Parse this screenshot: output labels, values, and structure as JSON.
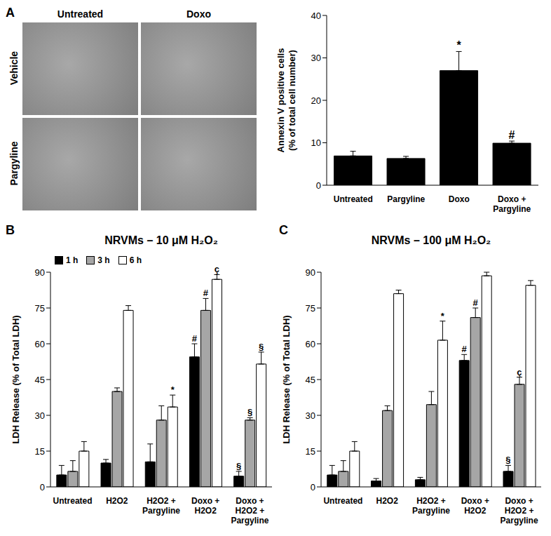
{
  "chart_data": [
    {
      "panel_label": "A",
      "type": "bar",
      "image_grid": {
        "columns": [
          "Untreated",
          "Doxo"
        ],
        "rows": [
          "Vehicle",
          "Pargyline"
        ]
      },
      "y_label": "Annexin V positive cells (% of total cell number)",
      "categories": [
        "Untreated",
        "Pargyline",
        "Doxo",
        "Doxo + Pargyline"
      ],
      "series": [
        {
          "color": "#000000",
          "values": [
            6.9,
            6.3,
            27,
            9.9
          ],
          "errors": [
            1.1,
            0.5,
            4.5,
            0.5
          ],
          "annotations": [
            null,
            null,
            "*",
            "#"
          ]
        }
      ],
      "ylim": [
        0,
        40
      ],
      "yticks": [
        0,
        10,
        20,
        30,
        40
      ]
    },
    {
      "panel_label": "B",
      "type": "bar",
      "title": "NRVMs – 10 μM H₂O₂",
      "y_label": "LDH Release (% of Total LDH)",
      "categories": [
        "Untreated",
        "H2O2",
        "H2O2 + Pargyline",
        "Doxo + H2O2",
        "Doxo + H2O2 + Pargyline"
      ],
      "series": [
        {
          "name": "1 h",
          "color": "#000000",
          "values": [
            5,
            10,
            10.5,
            54.5,
            4.5
          ],
          "errors": [
            4,
            1.5,
            7.5,
            5.5,
            2
          ],
          "annotations": [
            null,
            null,
            null,
            "#",
            "§"
          ]
        },
        {
          "name": "3 h",
          "color": "#a6a6a6",
          "values": [
            6.5,
            40,
            28,
            74,
            28
          ],
          "errors": [
            4.5,
            1.5,
            6,
            5,
            1
          ],
          "annotations": [
            null,
            null,
            null,
            "#",
            "§"
          ]
        },
        {
          "name": "6 h",
          "color": "#ffffff",
          "values": [
            15,
            74,
            33.5,
            87,
            51.5
          ],
          "errors": [
            4,
            2,
            5,
            2,
            5
          ],
          "annotations": [
            null,
            null,
            "*",
            "ç",
            "§"
          ]
        }
      ],
      "ylim": [
        0,
        90
      ],
      "yticks": [
        0,
        15,
        30,
        45,
        60,
        75,
        90
      ],
      "legend": "top left"
    },
    {
      "panel_label": "C",
      "type": "bar",
      "title": "NRVMs – 100 μM H₂O₂",
      "y_label": "LDH Release (% of Total LDH)",
      "categories": [
        "Untreated",
        "H2O2",
        "H2O2 + Pargyline",
        "Doxo + H2O2",
        "Doxo + H2O2 + Pargyline"
      ],
      "series": [
        {
          "name": "1 h",
          "color": "#000000",
          "values": [
            5,
            2.5,
            3,
            53,
            6.5
          ],
          "errors": [
            4,
            1,
            1,
            2.5,
            2.5
          ],
          "annotations": [
            null,
            null,
            null,
            "#",
            "§"
          ]
        },
        {
          "name": "3 h",
          "color": "#a6a6a6",
          "values": [
            6.5,
            32,
            34.5,
            71,
            43
          ],
          "errors": [
            4.5,
            2,
            5.5,
            4,
            3
          ],
          "annotations": [
            null,
            null,
            null,
            "#",
            "ç"
          ]
        },
        {
          "name": "6 h",
          "color": "#ffffff",
          "values": [
            15,
            81,
            61.5,
            88.5,
            84.5
          ],
          "errors": [
            4,
            1.5,
            8,
            1.5,
            2
          ],
          "annotations": [
            null,
            null,
            "*",
            null,
            null
          ]
        }
      ],
      "ylim": [
        0,
        90
      ],
      "yticks": [
        0,
        15,
        30,
        45,
        60,
        75,
        90
      ]
    }
  ]
}
